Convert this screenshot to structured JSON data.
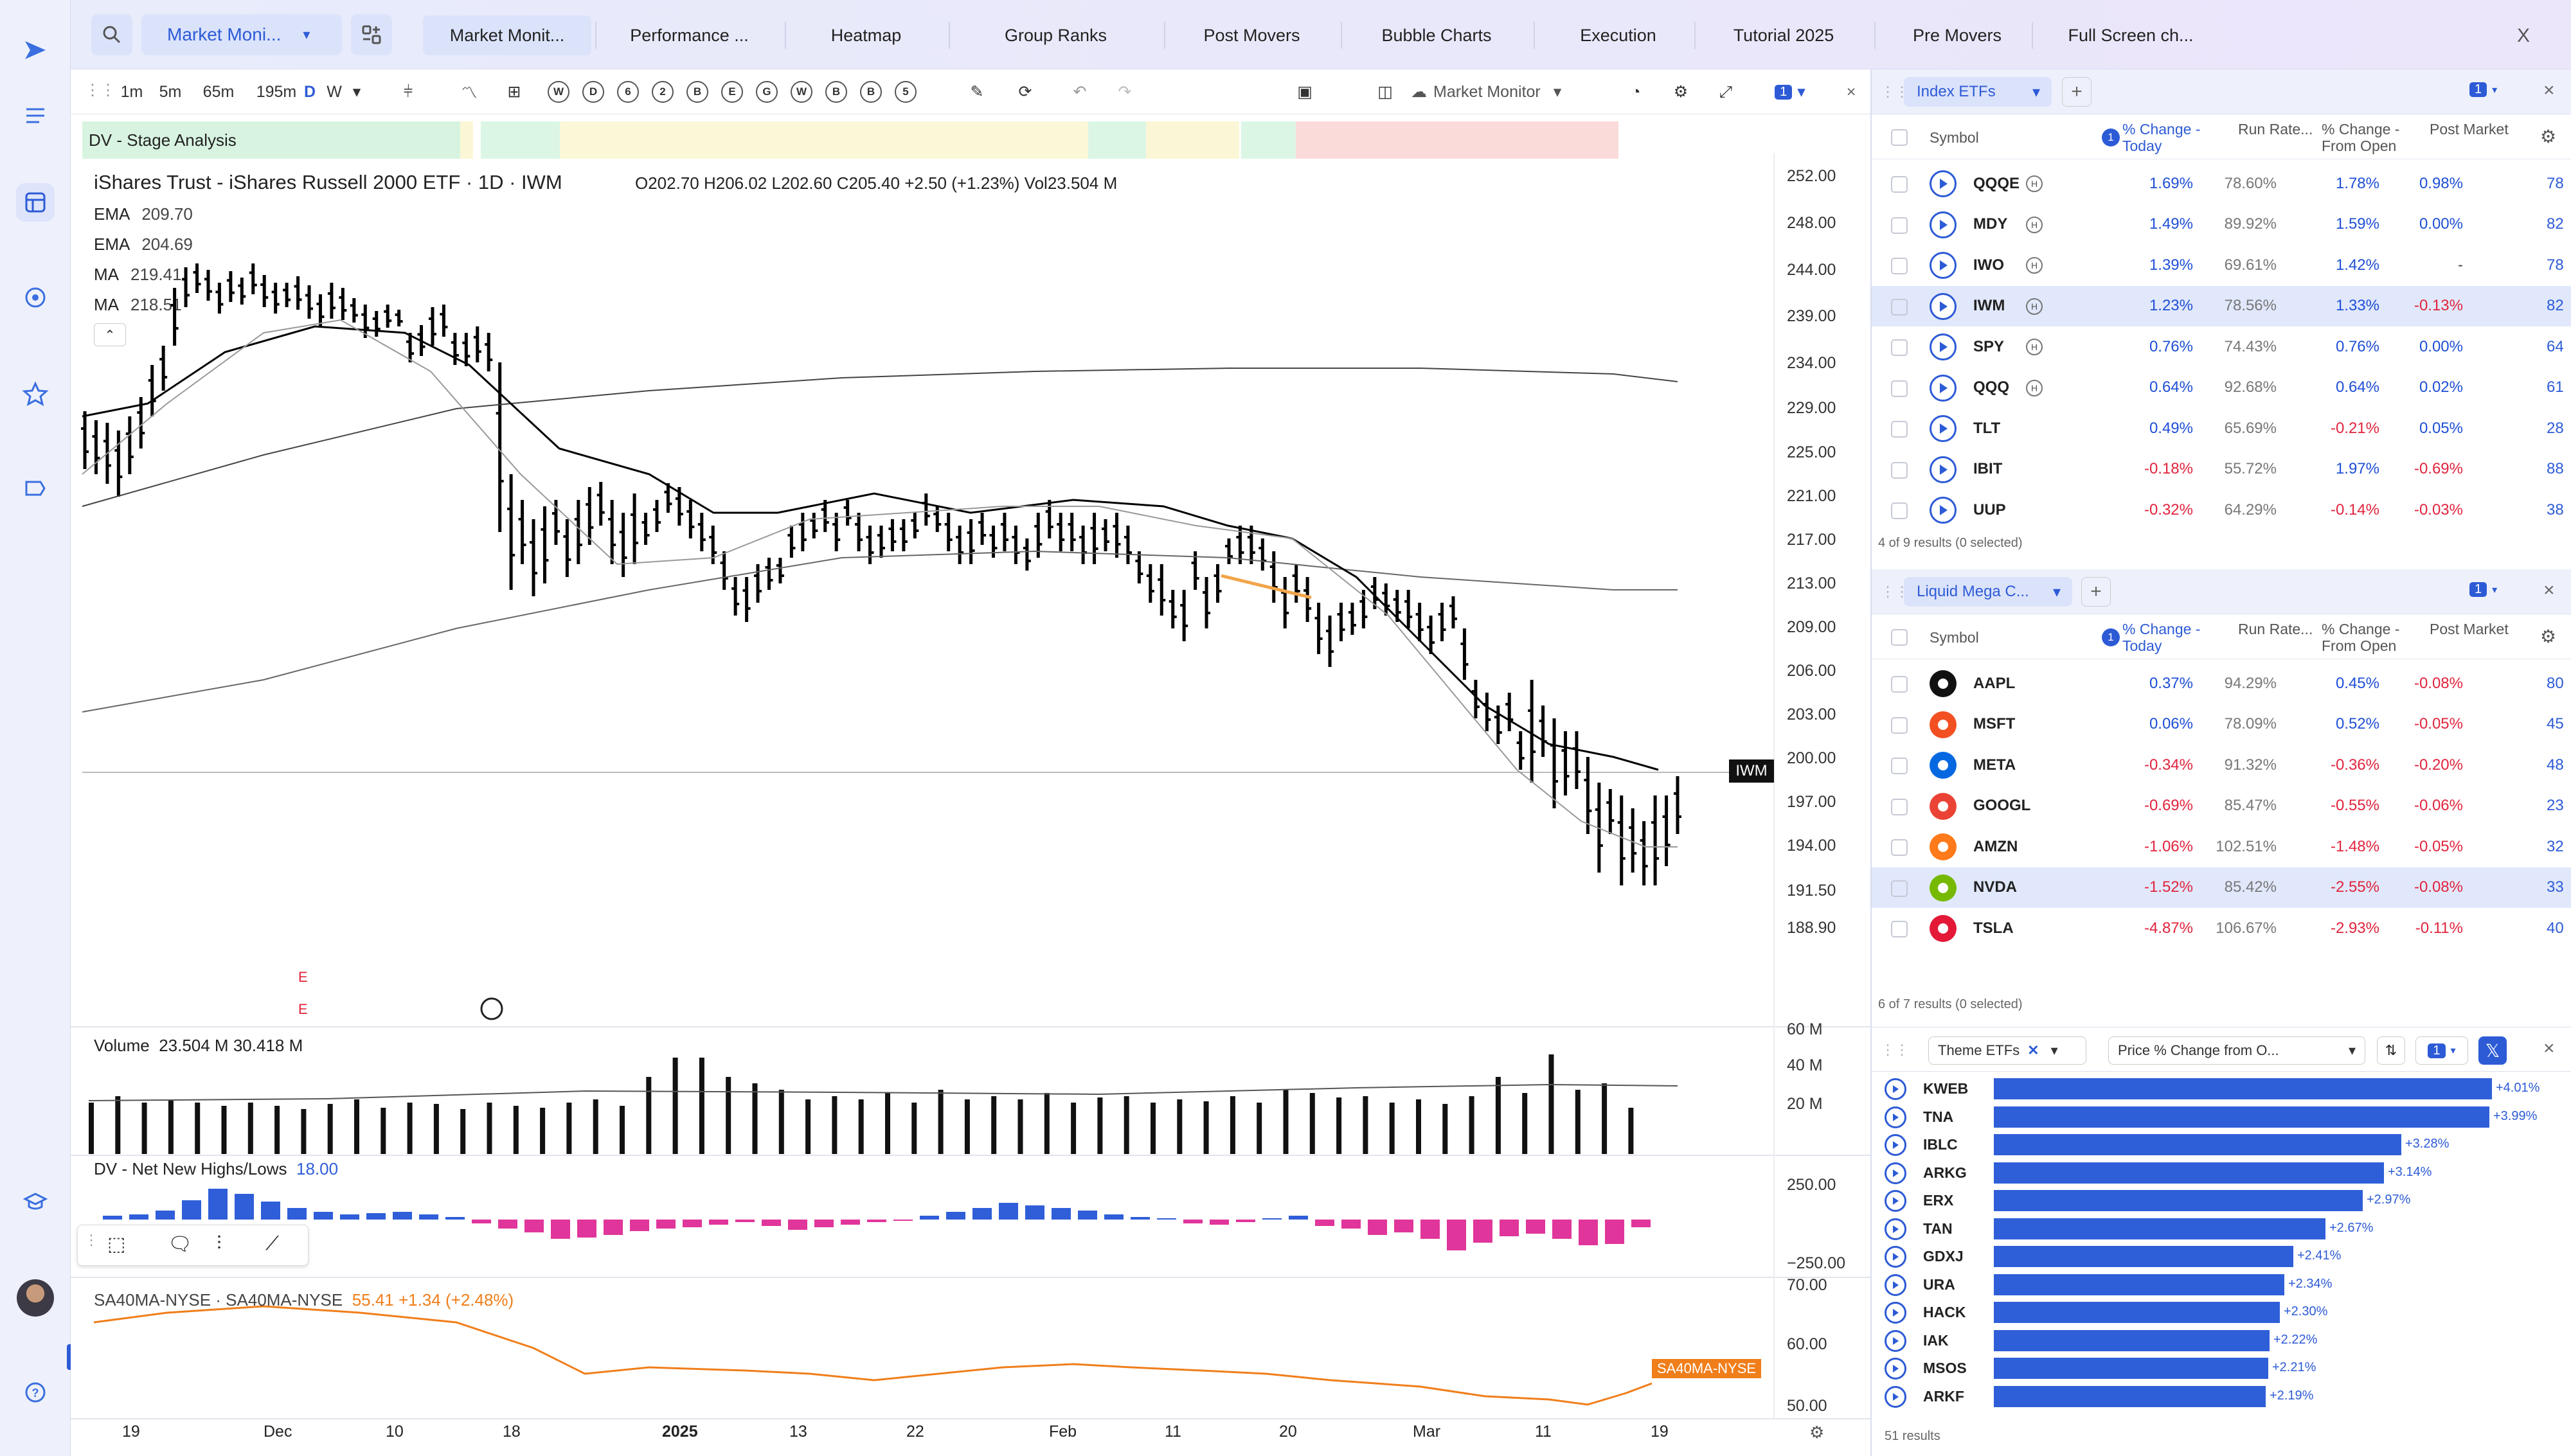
{
  "app": {
    "search_tab_label": "Market Moni...",
    "tabs": [
      "Market Monit...",
      "Performance ...",
      "Heatmap",
      "Group Ranks",
      "Post Movers",
      "Bubble Charts",
      "Execution",
      "Tutorial 2025",
      "Pre Movers",
      "Full Screen ch..."
    ],
    "close_label": "X"
  },
  "toolbar": {
    "timeframes": [
      "1m",
      "5m",
      "65m",
      "195m",
      "D",
      "W"
    ],
    "active_timeframe": "D",
    "circle_buttons": [
      "W",
      "D",
      "6",
      "2",
      "B",
      "E",
      "G",
      "W",
      "B",
      "B",
      "5"
    ],
    "layout_label": "Market Monitor",
    "badge": "1"
  },
  "chart": {
    "stage_label": "DV - Stage Analysis",
    "title": "iShares Trust - iShares Russell 2000 ETF · 1D · IWM",
    "ohlc": "O202.70  H206.02  L202.60  C205.40  +2.50 (+1.23%)  Vol23.504 M",
    "indicators": [
      {
        "name": "EMA",
        "value": "209.70"
      },
      {
        "name": "EMA",
        "value": "204.69"
      },
      {
        "name": "MA",
        "value": "219.41"
      },
      {
        "name": "MA",
        "value": "218.51"
      }
    ],
    "price_ticks": [
      "252.00",
      "248.00",
      "244.00",
      "239.00",
      "234.00",
      "229.00",
      "225.00",
      "221.00",
      "217.00",
      "213.00",
      "209.00",
      "206.00",
      "203.00",
      "200.00",
      "197.00",
      "194.00",
      "191.50",
      "188.90"
    ],
    "symbol_tag": "IWM",
    "earnings_marks": [
      "E",
      "E"
    ],
    "volume_label": "Volume",
    "volume_values": "23.504 M  30.418 M",
    "volume_ticks": [
      "60 M",
      "40 M",
      "20 M"
    ],
    "nnh_label": "DV - Net New Highs/Lows",
    "nnh_value": "18.00",
    "nnh_ticks": [
      "250.00",
      "−250.00"
    ],
    "sa_label": "SA40MA-NYSE · SA40MA-NYSE",
    "sa_value": "55.41  +1.34 (+2.48%)",
    "sa_ticks": [
      "70.00",
      "60.00",
      "50.00"
    ],
    "sa_tag": "SA40MA-NYSE",
    "x_ticks": [
      "19",
      "Dec",
      "10",
      "18",
      "2025",
      "13",
      "22",
      "Feb",
      "11",
      "20",
      "Mar",
      "11",
      "19"
    ],
    "colors": {
      "up_bar": "#000000",
      "ema_fast": "#000000",
      "ema_slow": "#999999",
      "nnh_pos": "#2f5ed8",
      "nnh_neg": "#e0359a",
      "sa_line": "#f07e1a"
    }
  },
  "panel1": {
    "title": "Index ETFs",
    "badge": "1",
    "columns": [
      "Symbol",
      "% Change - Today",
      "Run Rate...",
      "% Change - From Open",
      "Post Market"
    ],
    "rows": [
      {
        "symbol": "QQQE",
        "chg": "1.69%",
        "run": "78.60%",
        "open": "1.78%",
        "post": "0.98%",
        "extra": "78",
        "hl": true
      },
      {
        "symbol": "MDY",
        "chg": "1.49%",
        "run": "89.92%",
        "open": "1.59%",
        "post": "0.00%",
        "extra": "82",
        "hl": true
      },
      {
        "symbol": "IWO",
        "chg": "1.39%",
        "run": "69.61%",
        "open": "1.42%",
        "post": "-",
        "extra": "78",
        "hl": true
      },
      {
        "symbol": "IWM",
        "chg": "1.23%",
        "run": "78.56%",
        "open": "1.33%",
        "post": "-0.13%",
        "extra": "82",
        "hl": true
      },
      {
        "symbol": "SPY",
        "chg": "0.76%",
        "run": "74.43%",
        "open": "0.76%",
        "post": "0.00%",
        "extra": "64",
        "hl": true
      },
      {
        "symbol": "QQQ",
        "chg": "0.64%",
        "run": "92.68%",
        "open": "0.64%",
        "post": "0.02%",
        "extra": "61",
        "hl": true
      },
      {
        "symbol": "TLT",
        "chg": "0.49%",
        "run": "65.69%",
        "open": "-0.21%",
        "post": "0.05%",
        "extra": "28",
        "hl": false
      },
      {
        "symbol": "IBIT",
        "chg": "-0.18%",
        "run": "55.72%",
        "open": "1.97%",
        "post": "-0.69%",
        "extra": "88",
        "hl": false
      },
      {
        "symbol": "UUP",
        "chg": "-0.32%",
        "run": "64.29%",
        "open": "-0.14%",
        "post": "-0.03%",
        "extra": "38",
        "hl": false
      }
    ],
    "footer": "4 of 9 results (0 selected)"
  },
  "panel2": {
    "title": "Liquid Mega C...",
    "badge": "1",
    "columns": [
      "Symbol",
      "% Change - Today",
      "Run Rate...",
      "% Change - From Open",
      "Post Market"
    ],
    "rows": [
      {
        "symbol": "AAPL",
        "chg": "0.37%",
        "run": "94.29%",
        "open": "0.45%",
        "post": "-0.08%",
        "extra": "80"
      },
      {
        "symbol": "MSFT",
        "chg": "0.06%",
        "run": "78.09%",
        "open": "0.52%",
        "post": "-0.05%",
        "extra": "45"
      },
      {
        "symbol": "META",
        "chg": "-0.34%",
        "run": "91.32%",
        "open": "-0.36%",
        "post": "-0.20%",
        "extra": "48"
      },
      {
        "symbol": "GOOGL",
        "chg": "-0.69%",
        "run": "85.47%",
        "open": "-0.55%",
        "post": "-0.06%",
        "extra": "23"
      },
      {
        "symbol": "AMZN",
        "chg": "-1.06%",
        "run": "102.51%",
        "open": "-1.48%",
        "post": "-0.05%",
        "extra": "32"
      },
      {
        "symbol": "NVDA",
        "chg": "-1.52%",
        "run": "85.42%",
        "open": "-2.55%",
        "post": "-0.08%",
        "extra": "33"
      },
      {
        "symbol": "TSLA",
        "chg": "-4.87%",
        "run": "106.67%",
        "open": "-2.93%",
        "post": "-0.11%",
        "extra": "40"
      }
    ],
    "footer": "6 of 7 results (0 selected)"
  },
  "panel3": {
    "filter": "Theme ETFs",
    "sort": "Price % Change from O...",
    "badge": "1",
    "rows": [
      {
        "symbol": "KWEB",
        "label": "+4.01%",
        "value": 4.01
      },
      {
        "symbol": "TNA",
        "label": "+3.99%",
        "value": 3.99
      },
      {
        "symbol": "IBLC",
        "label": "+3.28%",
        "value": 3.28
      },
      {
        "symbol": "ARKG",
        "label": "+3.14%",
        "value": 3.14
      },
      {
        "symbol": "ERX",
        "label": "+2.97%",
        "value": 2.97
      },
      {
        "symbol": "TAN",
        "label": "+2.67%",
        "value": 2.67
      },
      {
        "symbol": "GDXJ",
        "label": "+2.41%",
        "value": 2.41
      },
      {
        "symbol": "URA",
        "label": "+2.34%",
        "value": 2.34
      },
      {
        "symbol": "HACK",
        "label": "+2.30%",
        "value": 2.3
      },
      {
        "symbol": "IAK",
        "label": "+2.22%",
        "value": 2.22
      },
      {
        "symbol": "MSOS",
        "label": "+2.21%",
        "value": 2.21
      },
      {
        "symbol": "ARKF",
        "label": "+2.19%",
        "value": 2.19
      }
    ],
    "footer": "51 results"
  }
}
